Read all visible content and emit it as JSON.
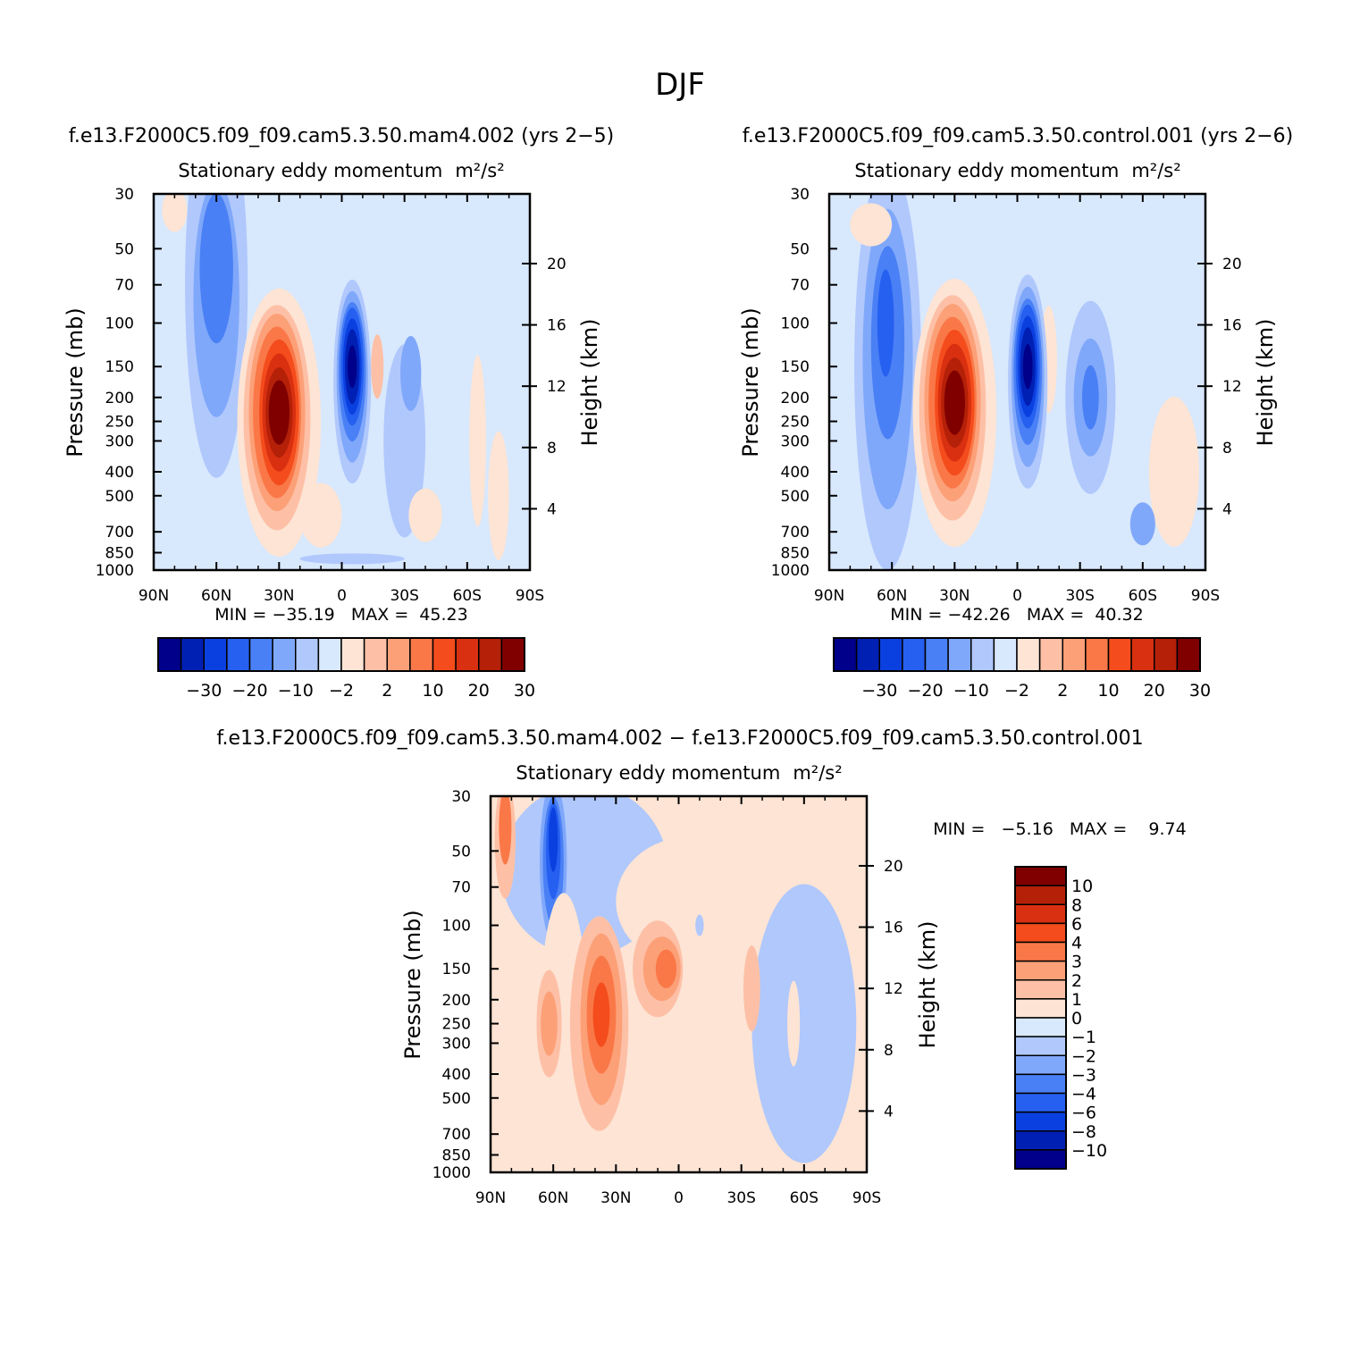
{
  "figure": {
    "title": "DJF",
    "ytitle": "Pressure (mb)",
    "y2title": "Height (km)",
    "lat_ticks": [
      "90N",
      "60N",
      "30N",
      "0",
      "30S",
      "60S",
      "90S"
    ],
    "pressure_ticks": [
      "30",
      "50",
      "70",
      "100",
      "150",
      "200",
      "250",
      "300",
      "400",
      "500",
      "700",
      "850",
      "1000"
    ],
    "height_ticks": [
      "20",
      "16",
      "12",
      "8",
      "4"
    ]
  },
  "chart_data": [
    {
      "type": "heatmap",
      "title": "f.e13.F2000C5.f09_f09.cam5.3.50.mam4.002 (yrs 2−5)",
      "subtitle": "Stationary eddy momentum",
      "units": "m²/s²",
      "xlabel": "",
      "ylabel": "Pressure (mb)",
      "y2label": "Height (km)",
      "x_range": [
        90,
        -90
      ],
      "y_range": [
        1000,
        30
      ],
      "y_scale": "log",
      "stats": "MIN = −35.19   MAX =  45.23",
      "min": -35.19,
      "max": 45.23,
      "features": [
        {
          "lat": 30,
          "p": 230,
          "value": 45.23
        },
        {
          "lat": -5,
          "p": 150,
          "value": -35.19
        },
        {
          "lat": 59,
          "p": 80,
          "value": -12
        },
        {
          "lat": -35,
          "p": 180,
          "value": -5
        },
        {
          "lat": -18,
          "p": 150,
          "value": 3
        }
      ],
      "colorbar": {
        "orientation": "horizontal",
        "levels": [
          "−30",
          "−20",
          "−10",
          "−2",
          "2",
          "10",
          "20",
          "30"
        ],
        "colors": [
          "#00008b",
          "#0020b4",
          "#0b40e0",
          "#2660f0",
          "#4a80f5",
          "#80a8fa",
          "#b0c8fc",
          "#d8e8fd",
          "#fde4d4",
          "#fdc0a6",
          "#fca078",
          "#fa7848",
          "#f44c1c",
          "#d83010",
          "#b42008",
          "#800000"
        ]
      }
    },
    {
      "type": "heatmap",
      "title": "f.e13.F2000C5.f09_f09.cam5.3.50.control.001 (yrs 2−6)",
      "subtitle": "Stationary eddy momentum",
      "units": "m²/s²",
      "xlabel": "",
      "ylabel": "Pressure (mb)",
      "y2label": "Height (km)",
      "x_range": [
        90,
        -90
      ],
      "y_range": [
        1000,
        30
      ],
      "y_scale": "log",
      "stats": "MIN = −42.26   MAX =  40.32",
      "min": -42.26,
      "max": 40.32,
      "features": [
        {
          "lat": 30,
          "p": 210,
          "value": 40.32
        },
        {
          "lat": -5,
          "p": 150,
          "value": -42.26
        },
        {
          "lat": 62,
          "p": 110,
          "value": -12
        },
        {
          "lat": -35,
          "p": 180,
          "value": -6
        }
      ],
      "colorbar": {
        "orientation": "horizontal",
        "levels": [
          "−30",
          "−20",
          "−10",
          "−2",
          "2",
          "10",
          "20",
          "30"
        ],
        "colors": [
          "#00008b",
          "#0020b4",
          "#0b40e0",
          "#2660f0",
          "#4a80f5",
          "#80a8fa",
          "#b0c8fc",
          "#d8e8fd",
          "#fde4d4",
          "#fdc0a6",
          "#fca078",
          "#fa7848",
          "#f44c1c",
          "#d83010",
          "#b42008",
          "#800000"
        ]
      }
    },
    {
      "type": "heatmap",
      "title": "f.e13.F2000C5.f09_f09.cam5.3.50.mam4.002 − f.e13.F2000C5.f09_f09.cam5.3.50.control.001",
      "subtitle": "Stationary eddy momentum",
      "units": "m²/s²",
      "xlabel": "",
      "ylabel": "Pressure (mb)",
      "y2label": "Height (km)",
      "x_range": [
        90,
        -90
      ],
      "y_range": [
        1000,
        30
      ],
      "y_scale": "log",
      "stats": "MIN =   −5.16   MAX =    9.74",
      "min": -5.16,
      "max": 9.74,
      "features": [
        {
          "lat": 37,
          "p": 230,
          "value": 9.74
        },
        {
          "lat": 60,
          "p": 50,
          "value": -5.16
        },
        {
          "lat": 8,
          "p": 150,
          "value": 5
        },
        {
          "lat": 83,
          "p": 40,
          "value": 4
        }
      ],
      "colorbar": {
        "orientation": "vertical",
        "levels": [
          "10",
          "8",
          "6",
          "4",
          "3",
          "2",
          "1",
          "0",
          "−1",
          "−2",
          "−3",
          "−4",
          "−6",
          "−8",
          "−10"
        ],
        "colors": [
          "#800000",
          "#b42008",
          "#d83010",
          "#f44c1c",
          "#fa7848",
          "#fca078",
          "#fdc0a6",
          "#fde4d4",
          "#d8e8fd",
          "#b0c8fc",
          "#80a8fa",
          "#4a80f5",
          "#2660f0",
          "#0b40e0",
          "#0020b4",
          "#00008b"
        ]
      }
    }
  ]
}
